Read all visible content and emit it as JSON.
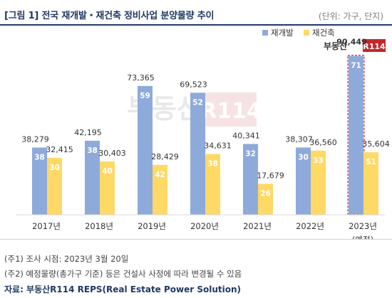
{
  "header": {
    "title": "[그림 1] 전국 재개발・재건축 정비사업 분양물량 추이",
    "unit": "(단위: 가구, 단지)"
  },
  "watermark": {
    "brand_text": "부동산",
    "brand_box_text": "R114",
    "brand_color": "#c0282d"
  },
  "chart_data": {
    "type": "bar",
    "categories": [
      "2017년",
      "2018년",
      "2019년",
      "2020년",
      "2021년",
      "2022년",
      "2023년"
    ],
    "category_sublabels": [
      "",
      "",
      "",
      "",
      "",
      "",
      "(예정)"
    ],
    "series": [
      {
        "name": "재개발",
        "color": "#8eaadb",
        "values": [
          38279,
          42195,
          73365,
          69523,
          40341,
          38307,
          90449
        ],
        "value_labels": [
          "38,279",
          "42,195",
          "73,365",
          "69,523",
          "40,341",
          "38,307",
          "90,449"
        ],
        "inner_labels": [
          "38",
          "38",
          "59",
          "52",
          "32",
          "30",
          "71"
        ]
      },
      {
        "name": "재건축",
        "color": "#ffd966",
        "values": [
          32415,
          30403,
          28429,
          34631,
          17679,
          36560,
          35604
        ],
        "value_labels": [
          "32,415",
          "30,403",
          "28,429",
          "34,631",
          "17,679",
          "36,560",
          "35,604"
        ],
        "inner_labels": [
          "30",
          "40",
          "42",
          "38",
          "26",
          "33",
          "51"
        ]
      }
    ],
    "highlight": {
      "category": "2023년",
      "series": "재개발",
      "fill": "#c0282d",
      "label_bold": true
    },
    "ylim": [
      0,
      100000
    ],
    "legend_placement": "top-right",
    "grid": false
  },
  "notes": [
    "(주1) 조사 시점: 2023년 3월 20일",
    "(주2) 예정물량(총가구 기준) 등은 건설사 사정에 따라 변경될 수 있음"
  ],
  "source": "자료: 부동산R114 REPS(Real Estate Power Solution)"
}
